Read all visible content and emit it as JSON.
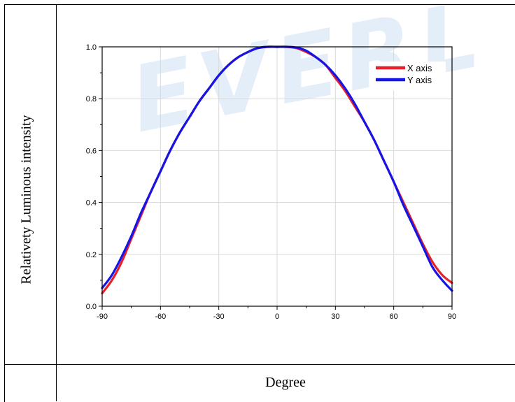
{
  "watermark": "EVERL",
  "chart_data": {
    "type": "line",
    "title": "",
    "xlabel": "Degree",
    "ylabel": "Relativety Luminous intensity",
    "xlim": [
      -90,
      90
    ],
    "ylim": [
      0,
      1.0
    ],
    "xticks": [
      -90,
      -60,
      -30,
      0,
      30,
      60,
      90
    ],
    "yticks": [
      0.0,
      0.2,
      0.4,
      0.6,
      0.8,
      1.0
    ],
    "x_tick_labels": [
      "-90",
      "-60",
      "-30",
      "0",
      "30",
      "60",
      "90"
    ],
    "y_tick_labels": [
      "0.0",
      "0.2",
      "0.4",
      "0.6",
      "0.8",
      "1.0"
    ],
    "grid": true,
    "legend_position": "top-right",
    "x": [
      -90,
      -85,
      -80,
      -75,
      -70,
      -65,
      -60,
      -55,
      -50,
      -45,
      -40,
      -35,
      -30,
      -25,
      -20,
      -15,
      -10,
      -5,
      0,
      5,
      10,
      15,
      20,
      25,
      30,
      35,
      40,
      45,
      50,
      55,
      60,
      65,
      70,
      75,
      80,
      85,
      90
    ],
    "series": [
      {
        "name": "X axis",
        "color": "#e8202a",
        "values": [
          0.05,
          0.1,
          0.17,
          0.26,
          0.35,
          0.44,
          0.52,
          0.6,
          0.67,
          0.73,
          0.79,
          0.84,
          0.89,
          0.93,
          0.96,
          0.98,
          0.995,
          1.0,
          1.0,
          1.0,
          0.995,
          0.98,
          0.96,
          0.93,
          0.88,
          0.83,
          0.77,
          0.71,
          0.64,
          0.56,
          0.48,
          0.4,
          0.32,
          0.24,
          0.17,
          0.12,
          0.09
        ]
      },
      {
        "name": "Y axis",
        "color": "#1515e6",
        "values": [
          0.07,
          0.12,
          0.19,
          0.27,
          0.36,
          0.44,
          0.52,
          0.6,
          0.67,
          0.73,
          0.79,
          0.84,
          0.89,
          0.93,
          0.96,
          0.98,
          0.995,
          1.0,
          1.0,
          1.0,
          0.997,
          0.985,
          0.96,
          0.93,
          0.89,
          0.84,
          0.78,
          0.71,
          0.64,
          0.56,
          0.48,
          0.39,
          0.31,
          0.23,
          0.15,
          0.1,
          0.06
        ]
      }
    ]
  }
}
